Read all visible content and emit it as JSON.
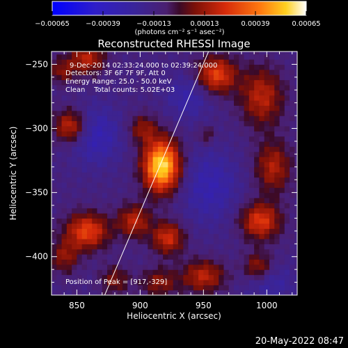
{
  "chart_data": {
    "type": "heatmap",
    "title": "Reconstructed RHESSI Image",
    "xlabel": "Heliocentric X (arcsec)",
    "ylabel": "Heliocentric Y (arcsec)",
    "xlim": [
      830,
      1024
    ],
    "ylim": [
      -430,
      -240
    ],
    "x_ticks": [
      {
        "value": 850,
        "label": "850"
      },
      {
        "value": 900,
        "label": "900"
      },
      {
        "value": 950,
        "label": "950"
      },
      {
        "value": 1000,
        "label": "1000"
      }
    ],
    "y_ticks": [
      {
        "value": -250,
        "label": "−250"
      },
      {
        "value": -300,
        "label": "−300"
      },
      {
        "value": -350,
        "label": "−350"
      },
      {
        "value": -400,
        "label": "−400"
      }
    ],
    "colorbar": {
      "min": -0.00065,
      "max": 0.00065,
      "unit_label": "(photons cm⁻² s⁻¹ asec⁻²)",
      "ticks": [
        {
          "value": -0.00065,
          "label": "−0.00065"
        },
        {
          "value": -0.00039,
          "label": "−0.00039"
        },
        {
          "value": -0.00013,
          "label": "−0.00013"
        },
        {
          "value": 0.00013,
          "label": "0.00013"
        },
        {
          "value": 0.00039,
          "label": "0.00039"
        },
        {
          "value": 0.00065,
          "label": "0.00065"
        }
      ]
    },
    "annotations": {
      "time_range": "9-Dec-2014 02:33:24.000 to 02:39:24.000",
      "detectors": "Detectors: 3F 6F 7F 9F, Att 0",
      "energy_range": "Energy Range: 25.0 - 50.0 keV",
      "clean_counts": "Clean    Total counts: 5.02E+03",
      "peak_position": "Position of Peak = [917,-329]"
    },
    "peak": {
      "x": 917,
      "y": -329
    },
    "limb_line": [
      {
        "x": 872,
        "y": -430
      },
      {
        "x": 954,
        "y": -240
      }
    ],
    "sources": [
      {
        "x": 917,
        "y": -329,
        "sx": 10,
        "sy": 14,
        "amp": 0.00072
      },
      {
        "x": 902,
        "y": -300,
        "sx": 8,
        "sy": 8,
        "amp": 0.00022
      },
      {
        "x": 960,
        "y": -258,
        "sx": 11,
        "sy": 10,
        "amp": 0.0004
      },
      {
        "x": 952,
        "y": -305,
        "sx": 5,
        "sy": 5,
        "amp": 0.00015
      },
      {
        "x": 845,
        "y": -298,
        "sx": 9,
        "sy": 9,
        "amp": 0.00035
      },
      {
        "x": 858,
        "y": -245,
        "sx": 10,
        "sy": 9,
        "amp": 0.0003
      },
      {
        "x": 838,
        "y": -255,
        "sx": 7,
        "sy": 7,
        "amp": 0.0002
      },
      {
        "x": 996,
        "y": -275,
        "sx": 12,
        "sy": 16,
        "amp": 0.0003
      },
      {
        "x": 1005,
        "y": -330,
        "sx": 10,
        "sy": 14,
        "amp": 0.00028
      },
      {
        "x": 995,
        "y": -372,
        "sx": 11,
        "sy": 10,
        "amp": 0.00038
      },
      {
        "x": 993,
        "y": -408,
        "sx": 8,
        "sy": 8,
        "amp": 0.00026
      },
      {
        "x": 858,
        "y": -380,
        "sx": 12,
        "sy": 10,
        "amp": 0.0004
      },
      {
        "x": 895,
        "y": -372,
        "sx": 9,
        "sy": 9,
        "amp": 0.0003
      },
      {
        "x": 922,
        "y": -385,
        "sx": 9,
        "sy": 9,
        "amp": 0.00034
      },
      {
        "x": 950,
        "y": -415,
        "sx": 12,
        "sy": 9,
        "amp": 0.0003
      },
      {
        "x": 915,
        "y": -420,
        "sx": 10,
        "sy": 8,
        "amp": 0.00022
      },
      {
        "x": 880,
        "y": -418,
        "sx": 8,
        "sy": 8,
        "amp": 0.0002
      },
      {
        "x": 840,
        "y": -400,
        "sx": 8,
        "sy": 9,
        "amp": 0.00022
      },
      {
        "x": 865,
        "y": -305,
        "sx": 14,
        "sy": 16,
        "amp": -0.0002
      },
      {
        "x": 938,
        "y": -275,
        "sx": 12,
        "sy": 12,
        "amp": -0.00016
      },
      {
        "x": 955,
        "y": -345,
        "sx": 16,
        "sy": 20,
        "amp": -0.00018
      },
      {
        "x": 1002,
        "y": -420,
        "sx": 14,
        "sy": 10,
        "amp": -0.00014
      }
    ]
  },
  "footer": {
    "timestamp": "20-May-2022 08:47"
  }
}
